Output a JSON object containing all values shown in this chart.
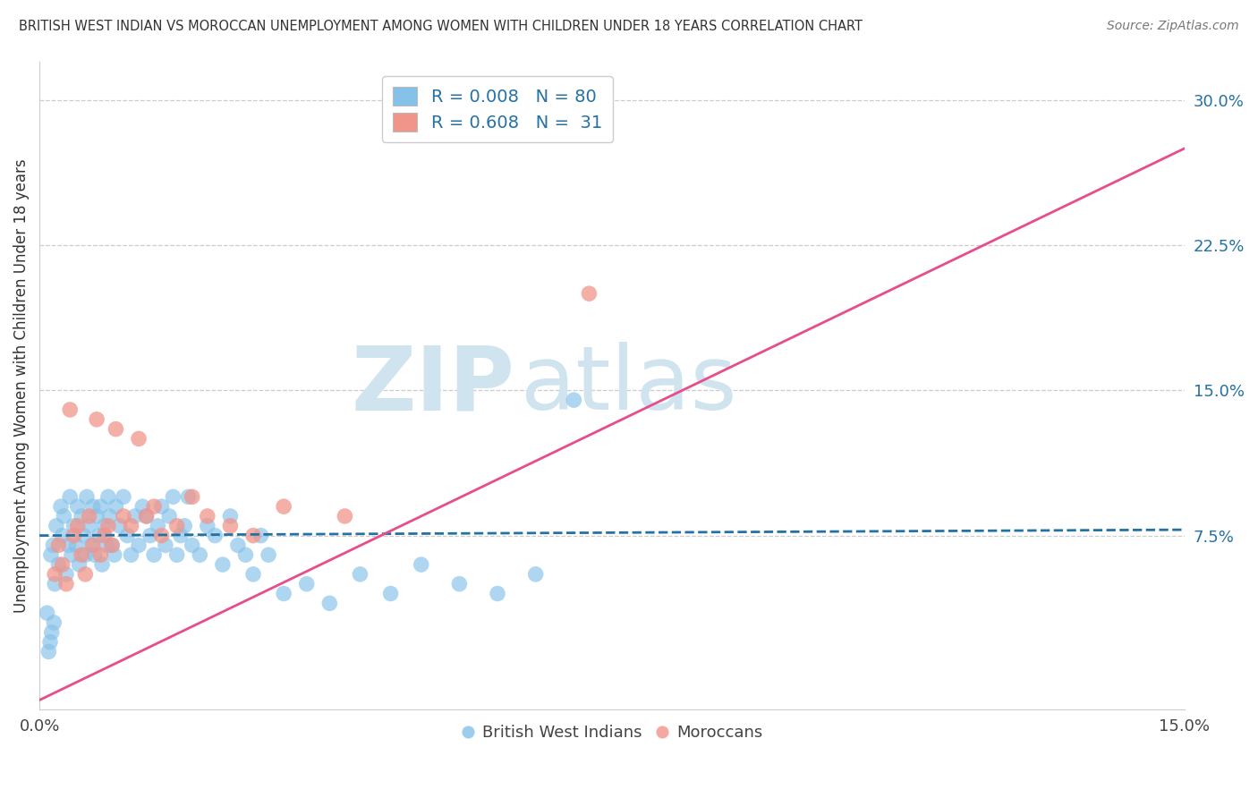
{
  "title": "BRITISH WEST INDIAN VS MOROCCAN UNEMPLOYMENT AMONG WOMEN WITH CHILDREN UNDER 18 YEARS CORRELATION CHART",
  "source": "Source: ZipAtlas.com",
  "ylabel": "Unemployment Among Women with Children Under 18 years",
  "xlim": [
    0.0,
    15.0
  ],
  "ylim": [
    -1.5,
    32.0
  ],
  "yticks": [
    0.0,
    7.5,
    15.0,
    22.5,
    30.0
  ],
  "ytick_labels": [
    "",
    "7.5%",
    "15.0%",
    "22.5%",
    "30.0%"
  ],
  "xtick_labels": [
    "0.0%",
    "15.0%"
  ],
  "legend_blue_label": "R = 0.008   N = 80",
  "legend_pink_label": "R = 0.608   N =  31",
  "blue_color": "#85c1e9",
  "pink_color": "#f1948a",
  "blue_line_color": "#2471a3",
  "pink_line_color": "#e74c8b",
  "watermark_top": "ZIP",
  "watermark_bot": "atlas",
  "watermark_color": "#d0e4f0",
  "background_color": "#ffffff",
  "blue_trend_x": [
    0,
    15
  ],
  "blue_trend_y": [
    7.5,
    7.8
  ],
  "pink_trend_x": [
    0,
    15
  ],
  "pink_trend_y": [
    -1.0,
    27.5
  ],
  "blue_dots_x": [
    0.15,
    0.18,
    0.2,
    0.22,
    0.25,
    0.28,
    0.3,
    0.32,
    0.35,
    0.38,
    0.4,
    0.42,
    0.45,
    0.48,
    0.5,
    0.52,
    0.55,
    0.58,
    0.6,
    0.62,
    0.65,
    0.68,
    0.7,
    0.72,
    0.75,
    0.78,
    0.8,
    0.82,
    0.85,
    0.88,
    0.9,
    0.92,
    0.95,
    0.98,
    1.0,
    1.05,
    1.1,
    1.15,
    1.2,
    1.25,
    1.3,
    1.35,
    1.4,
    1.45,
    1.5,
    1.55,
    1.6,
    1.65,
    1.7,
    1.75,
    1.8,
    1.85,
    1.9,
    1.95,
    2.0,
    2.1,
    2.2,
    2.3,
    2.4,
    2.5,
    2.6,
    2.7,
    2.8,
    2.9,
    3.0,
    3.2,
    3.5,
    3.8,
    4.2,
    4.6,
    5.0,
    5.5,
    6.0,
    6.5,
    7.0,
    0.1,
    0.12,
    0.14,
    0.16,
    0.19
  ],
  "blue_dots_y": [
    6.5,
    7.0,
    5.0,
    8.0,
    6.0,
    9.0,
    7.5,
    8.5,
    5.5,
    7.0,
    9.5,
    6.5,
    8.0,
    7.0,
    9.0,
    6.0,
    8.5,
    7.5,
    6.5,
    9.5,
    8.0,
    7.0,
    9.0,
    6.5,
    8.5,
    7.5,
    9.0,
    6.0,
    8.0,
    7.0,
    9.5,
    8.5,
    7.0,
    6.5,
    9.0,
    8.0,
    9.5,
    7.5,
    6.5,
    8.5,
    7.0,
    9.0,
    8.5,
    7.5,
    6.5,
    8.0,
    9.0,
    7.0,
    8.5,
    9.5,
    6.5,
    7.5,
    8.0,
    9.5,
    7.0,
    6.5,
    8.0,
    7.5,
    6.0,
    8.5,
    7.0,
    6.5,
    5.5,
    7.5,
    6.5,
    4.5,
    5.0,
    4.0,
    5.5,
    4.5,
    6.0,
    5.0,
    4.5,
    5.5,
    14.5,
    3.5,
    1.5,
    2.0,
    2.5,
    3.0
  ],
  "pink_dots_x": [
    0.2,
    0.25,
    0.3,
    0.35,
    0.4,
    0.45,
    0.5,
    0.55,
    0.6,
    0.65,
    0.7,
    0.75,
    0.8,
    0.85,
    0.9,
    0.95,
    1.0,
    1.1,
    1.2,
    1.3,
    1.4,
    1.5,
    1.6,
    1.8,
    2.0,
    2.2,
    2.5,
    2.8,
    3.2,
    4.0,
    7.2
  ],
  "pink_dots_y": [
    5.5,
    7.0,
    6.0,
    5.0,
    14.0,
    7.5,
    8.0,
    6.5,
    5.5,
    8.5,
    7.0,
    13.5,
    6.5,
    7.5,
    8.0,
    7.0,
    13.0,
    8.5,
    8.0,
    12.5,
    8.5,
    9.0,
    7.5,
    8.0,
    9.5,
    8.5,
    8.0,
    7.5,
    9.0,
    8.5,
    20.0
  ]
}
